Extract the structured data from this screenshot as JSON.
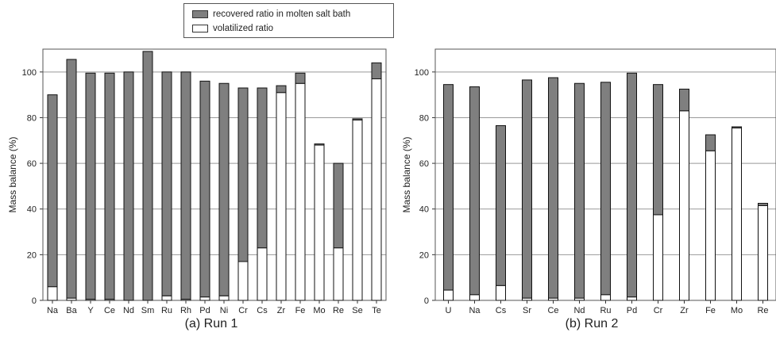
{
  "legend": {
    "recovered_label": "recovered ratio in molten salt bath",
    "volatilized_label": "volatilized ratio"
  },
  "colors": {
    "recovered": "#7f7f7f",
    "volatilized": "#ffffff",
    "stroke": "#111111",
    "grid": "#999999"
  },
  "chart_data": [
    {
      "type": "bar",
      "stacked": true,
      "caption": "(a) Run 1",
      "ylabel": "Mass balance (%)",
      "ylim": [
        0,
        110
      ],
      "yticks": [
        0,
        20,
        40,
        60,
        80,
        100
      ],
      "grid": true,
      "categories": [
        "Na",
        "Ba",
        "Y",
        "Ce",
        "Nd",
        "Sm",
        "Ru",
        "Rh",
        "Pd",
        "Ni",
        "Cr",
        "Cs",
        "Zr",
        "Fe",
        "Mo",
        "Re",
        "Se",
        "Te"
      ],
      "series": [
        {
          "name": "volatilized ratio",
          "values": [
            6,
            1,
            0.5,
            0.5,
            0,
            0,
            2,
            0.5,
            1.5,
            2,
            17,
            23,
            91,
            95,
            68,
            23,
            79,
            97
          ]
        },
        {
          "name": "recovered ratio in molten salt bath",
          "values": [
            84,
            104.5,
            99,
            99,
            100,
            109,
            98,
            99.5,
            94.5,
            93,
            76,
            70,
            3,
            4.5,
            0.5,
            37,
            0.5,
            7
          ]
        }
      ]
    },
    {
      "type": "bar",
      "stacked": true,
      "caption": "(b) Run 2",
      "ylabel": "Mass balance (%)",
      "ylim": [
        0,
        110
      ],
      "yticks": [
        0,
        20,
        40,
        60,
        80,
        100
      ],
      "grid": true,
      "categories": [
        "U",
        "Na",
        "Cs",
        "Sr",
        "Ce",
        "Nd",
        "Ru",
        "Pd",
        "Cr",
        "Zr",
        "Fe",
        "Mo",
        "Re"
      ],
      "series": [
        {
          "name": "volatilized ratio",
          "values": [
            4.5,
            2.5,
            6.5,
            1,
            1,
            1,
            2.5,
            1.5,
            37.5,
            83,
            65.5,
            75.5,
            41.5
          ]
        },
        {
          "name": "recovered ratio in molten salt bath",
          "values": [
            90,
            91,
            70,
            95.5,
            96.5,
            94,
            93,
            98,
            57,
            9.5,
            7,
            0.5,
            1
          ]
        }
      ]
    }
  ]
}
